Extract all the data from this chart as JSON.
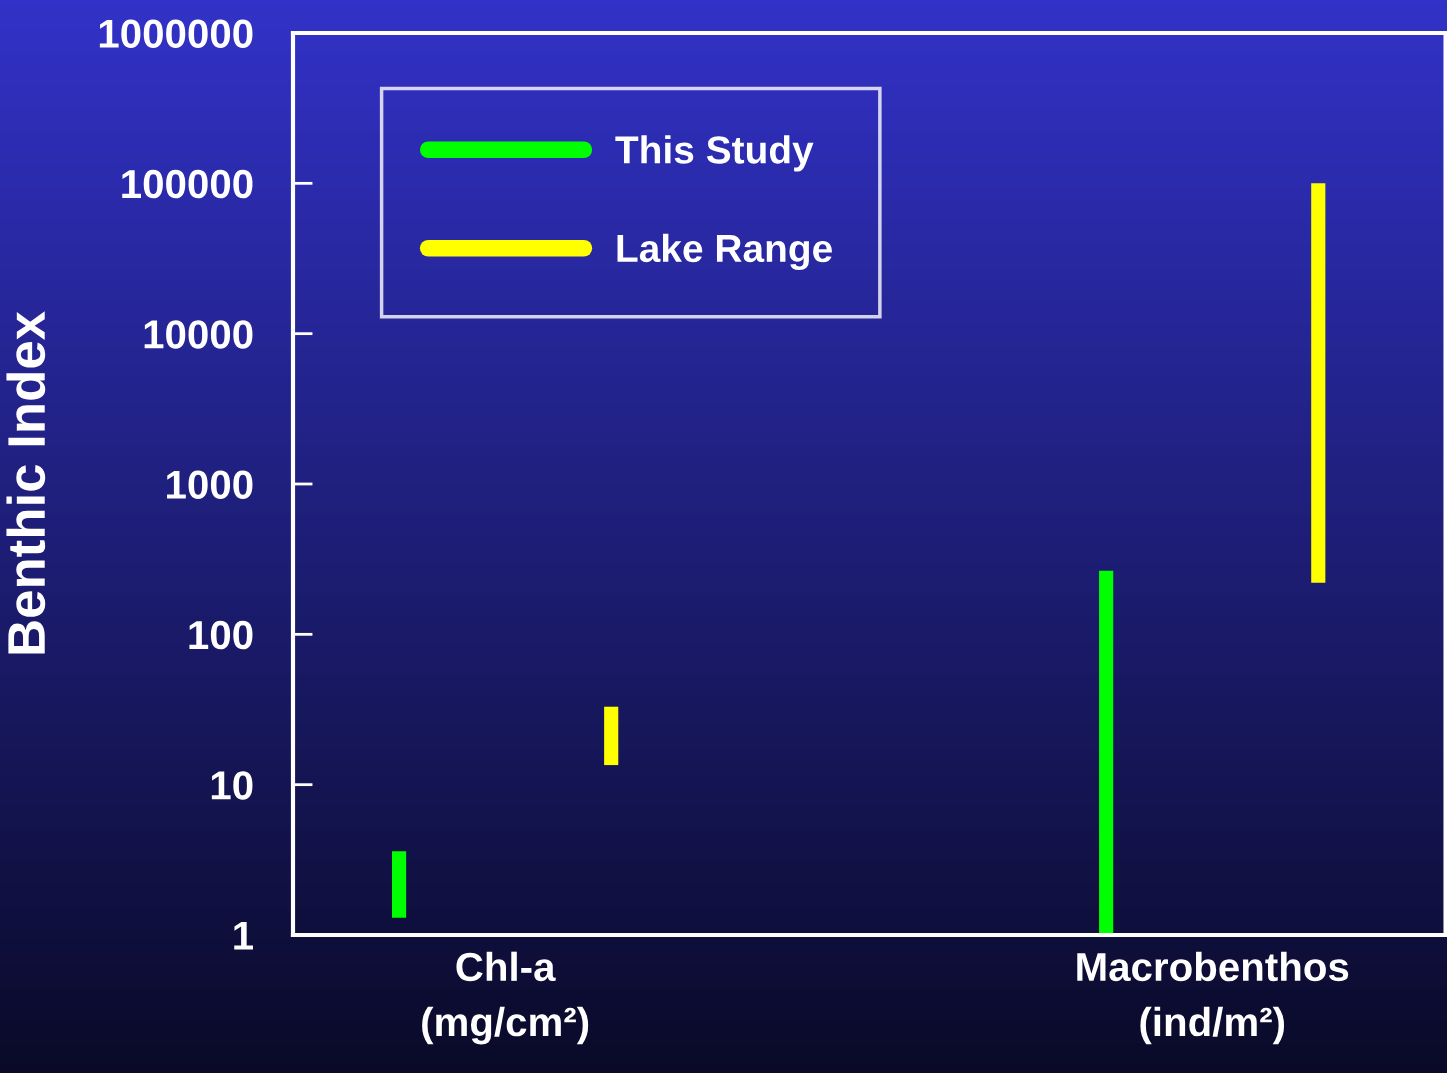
{
  "chart_data": {
    "type": "bar",
    "ylabel": "Benthic Index",
    "categories": [
      "Chl-a\n(mg/cm²)",
      "Macrobenthos\n(ind/m²)"
    ],
    "series": [
      {
        "name": "This Study",
        "color": "#00ff00",
        "base": [
          1.3,
          1
        ],
        "values": [
          2.3,
          264
        ]
      },
      {
        "name": "Lake Range",
        "color": "#ffff00",
        "base": [
          13.5,
          220
        ],
        "values": [
          19.5,
          99780
        ]
      }
    ],
    "log": true,
    "ylim": [
      1,
      1000000
    ],
    "yticks": [
      1,
      10,
      100,
      1000,
      10000,
      100000,
      1000000
    ],
    "grid": false,
    "legend": "top left"
  }
}
